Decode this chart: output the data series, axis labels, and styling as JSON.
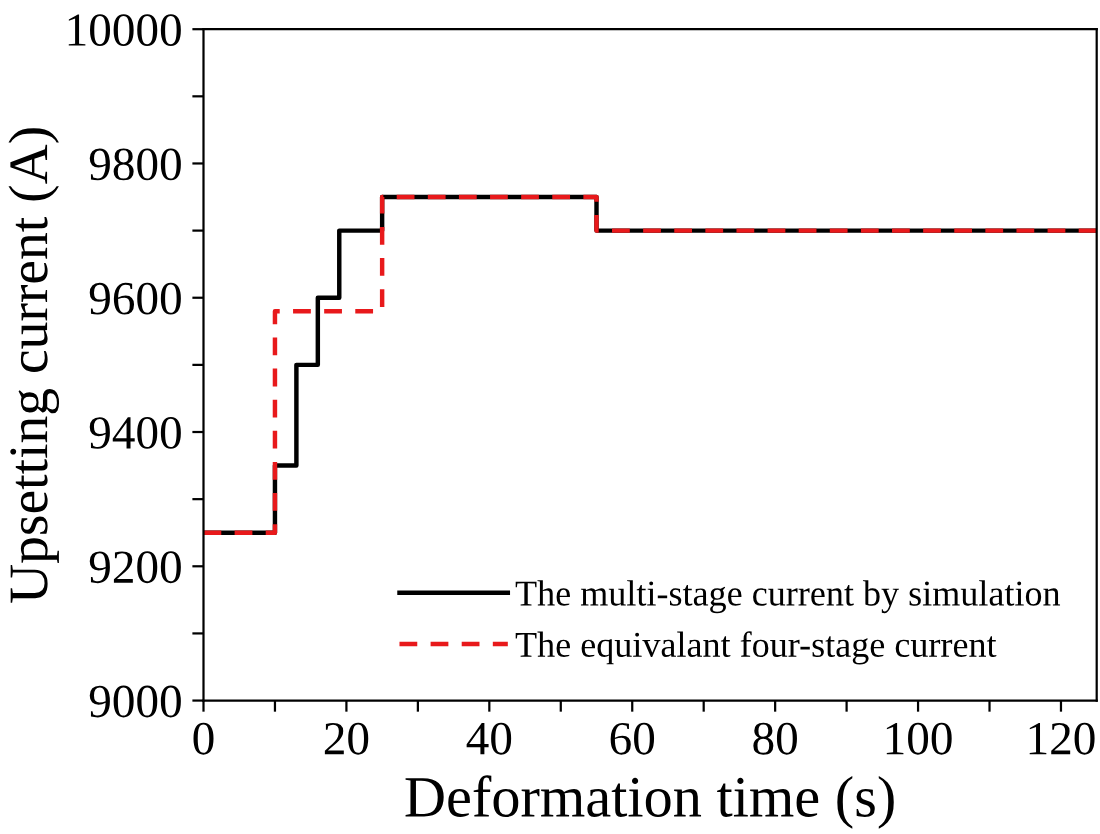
{
  "chart_data": {
    "type": "step",
    "xlabel": "Deformation time (s)",
    "ylabel": "Upsetting current (A)",
    "xlim": [
      0,
      125
    ],
    "ylim": [
      9000,
      10000
    ],
    "xticks": [
      0,
      {
        "value": 10,
        "label": null
      },
      20,
      {
        "value": 30,
        "label": null
      },
      40,
      {
        "value": 50,
        "label": null
      },
      60,
      {
        "value": 70,
        "label": null
      },
      80,
      {
        "value": 90,
        "label": null
      },
      100,
      {
        "value": 110,
        "label": null
      },
      120
    ],
    "yticks": [
      9000,
      {
        "value": 9100,
        "label": null
      },
      9200,
      {
        "value": 9300,
        "label": null
      },
      9400,
      {
        "value": 9500,
        "label": null
      },
      9600,
      {
        "value": 9700,
        "label": null
      },
      9800,
      {
        "value": 9900,
        "label": null
      },
      10000
    ],
    "grid": false,
    "legend": "bottom right",
    "series": [
      {
        "name": "The multi-stage current by simulation",
        "color": "#000000",
        "line_style": "solid",
        "x": [
          0,
          10,
          13,
          16,
          19,
          25,
          55,
          125
        ],
        "values": [
          9250,
          9350,
          9500,
          9600,
          9700,
          9750,
          9700,
          9700
        ]
      },
      {
        "name": "The equivalant four-stage current",
        "color": "#e8191b",
        "line_style": "dashed",
        "x": [
          0,
          10,
          25,
          55,
          125
        ],
        "values": [
          9250,
          9580,
          9750,
          9700,
          9700
        ]
      }
    ]
  }
}
